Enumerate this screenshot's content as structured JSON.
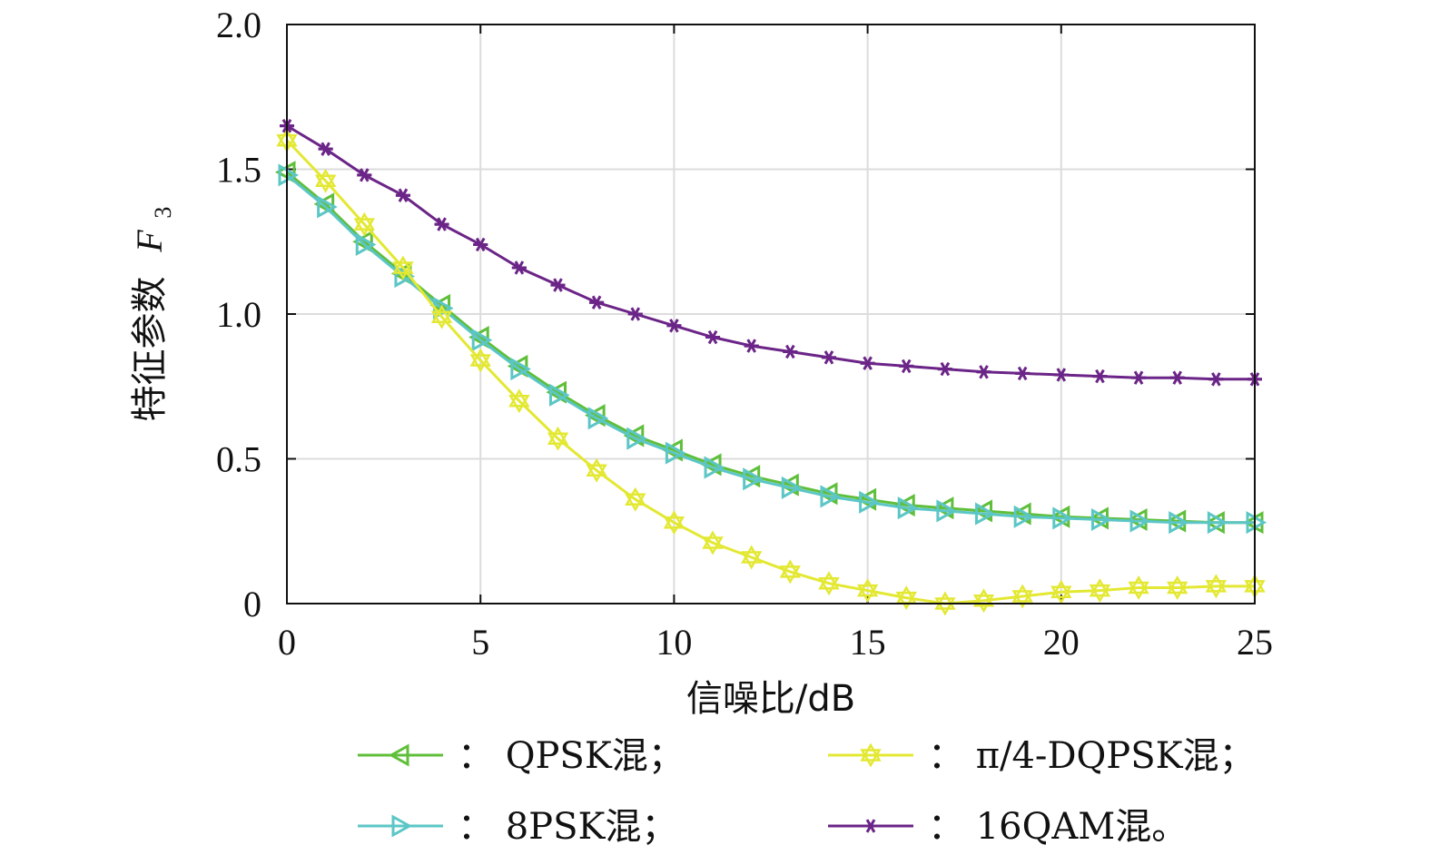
{
  "chart_data": {
    "type": "line",
    "xlabel": "信噪比/dB",
    "ylabel": "特征参数",
    "ylabel_symbol": "F",
    "ylabel_subscript": "3",
    "xlim": [
      0,
      25
    ],
    "ylim": [
      0,
      2.0
    ],
    "x_ticks": [
      0,
      5,
      10,
      15,
      20,
      25
    ],
    "x_tick_labels": [
      "0",
      "5",
      "10",
      "15",
      "20",
      "25"
    ],
    "y_ticks": [
      0,
      0.5,
      1.0,
      1.5,
      2.0
    ],
    "y_tick_labels": [
      "0",
      "0.5",
      "1.0",
      "1.5",
      "2.0"
    ],
    "grid": true,
    "legend_position": "bottom",
    "x": [
      0,
      1,
      2,
      3,
      4,
      5,
      6,
      7,
      8,
      9,
      10,
      11,
      12,
      13,
      14,
      15,
      16,
      17,
      18,
      19,
      20,
      21,
      22,
      23,
      24,
      25
    ],
    "series": [
      {
        "name": "QPSK混",
        "legend_label": "： QPSK混；",
        "color": "#5fbf3a",
        "marker": "triangle-left",
        "values": [
          1.49,
          1.38,
          1.25,
          1.14,
          1.03,
          0.92,
          0.82,
          0.73,
          0.65,
          0.58,
          0.53,
          0.48,
          0.44,
          0.41,
          0.38,
          0.36,
          0.34,
          0.33,
          0.32,
          0.31,
          0.3,
          0.295,
          0.29,
          0.285,
          0.28,
          0.28
        ]
      },
      {
        "name": "8PSK混",
        "legend_label": "： 8PSK混；",
        "color": "#5cc6c6",
        "marker": "triangle-right",
        "values": [
          1.48,
          1.37,
          1.24,
          1.13,
          1.02,
          0.91,
          0.81,
          0.72,
          0.64,
          0.57,
          0.52,
          0.47,
          0.43,
          0.4,
          0.37,
          0.35,
          0.33,
          0.32,
          0.31,
          0.3,
          0.295,
          0.29,
          0.285,
          0.28,
          0.28,
          0.28
        ]
      },
      {
        "name": "π/4-DQPSK混",
        "legend_label": "： π/4-DQPSK混；",
        "color": "#e3e832",
        "marker": "hexagram",
        "values": [
          1.6,
          1.46,
          1.31,
          1.16,
          0.99,
          0.84,
          0.7,
          0.57,
          0.46,
          0.36,
          0.28,
          0.21,
          0.16,
          0.11,
          0.07,
          0.045,
          0.02,
          0.0,
          0.01,
          0.025,
          0.04,
          0.045,
          0.055,
          0.055,
          0.06,
          0.06
        ]
      },
      {
        "name": "16QAM混",
        "legend_label": "： 16QAM混。",
        "color": "#6b2487",
        "marker": "asterisk",
        "values": [
          1.65,
          1.57,
          1.48,
          1.41,
          1.31,
          1.24,
          1.16,
          1.1,
          1.04,
          1.0,
          0.96,
          0.92,
          0.89,
          0.87,
          0.85,
          0.83,
          0.82,
          0.81,
          0.8,
          0.795,
          0.79,
          0.785,
          0.78,
          0.78,
          0.775,
          0.775
        ]
      }
    ]
  }
}
